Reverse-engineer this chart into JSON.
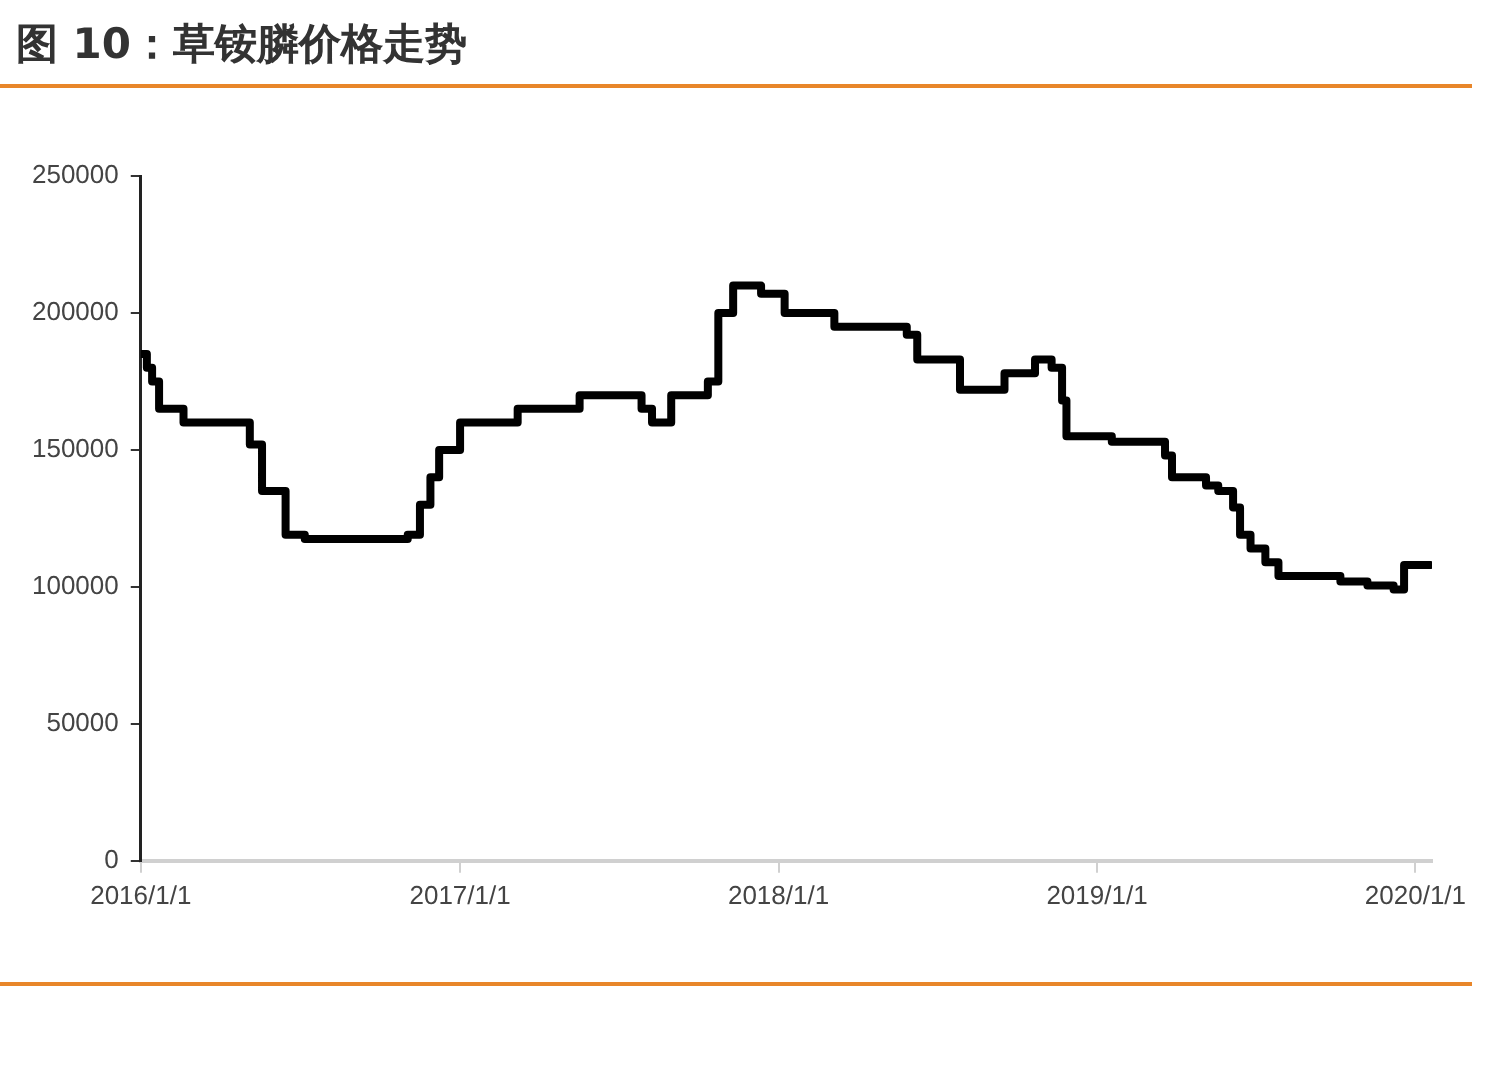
{
  "chart_data": {
    "type": "step",
    "title": "图 10：草铵膦价格走势",
    "x": [
      "2016-01-01",
      "2016-01-08",
      "2016-01-14",
      "2016-01-22",
      "2016-02-19",
      "2016-05-05",
      "2016-05-19",
      "2016-06-15",
      "2016-07-07",
      "2016-11-02",
      "2016-11-16",
      "2016-11-28",
      "2016-12-08",
      "2017-01-01",
      "2017-03-08",
      "2017-05-18",
      "2017-07-28",
      "2017-08-09",
      "2017-08-31",
      "2017-10-12",
      "2017-10-24",
      "2017-11-10",
      "2017-12-12",
      "2018-01-08",
      "2018-03-06",
      "2018-05-28",
      "2018-06-09",
      "2018-07-28",
      "2018-09-17",
      "2018-10-22",
      "2018-11-10",
      "2018-11-22",
      "2018-11-27",
      "2019-01-18",
      "2019-03-20",
      "2019-03-28",
      "2019-05-06",
      "2019-05-20",
      "2019-06-06",
      "2019-06-14",
      "2019-06-26",
      "2019-07-13",
      "2019-07-28",
      "2019-10-07",
      "2019-11-07",
      "2019-12-07",
      "2019-12-19",
      "2020-01-18"
    ],
    "series": [
      {
        "color": "#000000",
        "values": [
          185000,
          180000,
          175000,
          165000,
          160000,
          152000,
          135000,
          119000,
          117500,
          119000,
          130000,
          140000,
          150000,
          160000,
          165000,
          170000,
          165000,
          160000,
          170000,
          175000,
          200000,
          210000,
          207000,
          200000,
          195000,
          192000,
          183000,
          172000,
          178000,
          183000,
          180000,
          168000,
          155000,
          153000,
          148000,
          140000,
          137000,
          135000,
          129000,
          119000,
          114000,
          109000,
          104000,
          102000,
          100500,
          99000,
          108000,
          108000
        ]
      }
    ],
    "xlim": [
      "2016-01-01",
      "2020-01-20"
    ],
    "xticks": [
      {
        "value": "2016-01-01",
        "label": "2016/1/1"
      },
      {
        "value": "2017-01-01",
        "label": "2017/1/1"
      },
      {
        "value": "2018-01-01",
        "label": "2018/1/1"
      },
      {
        "value": "2019-01-01",
        "label": "2019/1/1"
      },
      {
        "value": "2020-01-01",
        "label": "2020/1/1"
      }
    ],
    "ylim": [
      0,
      250000
    ],
    "yticks": [
      0,
      50000,
      100000,
      150000,
      200000,
      250000
    ],
    "grid": false,
    "legend": false
  }
}
